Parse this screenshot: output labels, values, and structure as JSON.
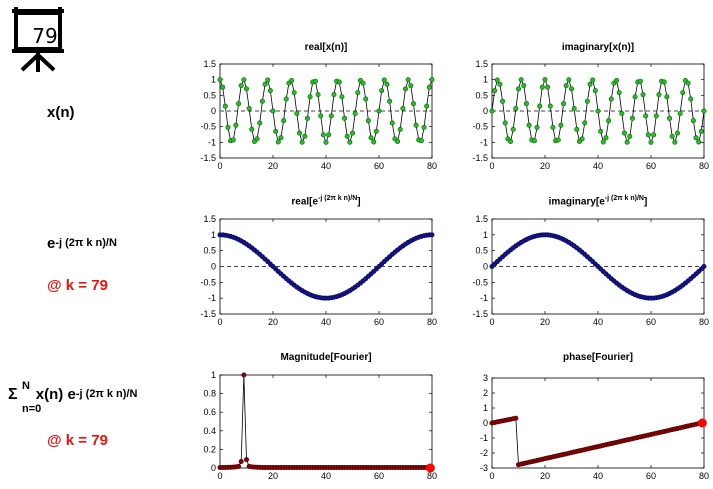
{
  "slide": {
    "number": "79"
  },
  "labels": {
    "row1_signal": "x(n)",
    "row2_base": "e",
    "row2_exp": "-j (2π k n)/N",
    "row2_k": "@ k = 79",
    "row3_sigma": "Σ",
    "row3_sigma_top": "N",
    "row3_sigma_bottom": "n=0",
    "row3_mid": " x(n) e",
    "row3_exp": "-j (2π k n)/N",
    "row3_k": "@ k = 79"
  },
  "titles": {
    "p1": "real[x(n)]",
    "p2": "imaginary[x(n)]",
    "p3_base": "real[e",
    "p3_sup": "-j (2π k n)/N",
    "p3_end": "]",
    "p4_base": "imaginary[e",
    "p4_sup": "-j (2π k n)/N",
    "p4_end": "]",
    "p5": "Magnitude[Fourier]",
    "p6": "phase[Fourier]"
  },
  "colors": {
    "green": "#22c21f",
    "navy": "#14148c",
    "darkred": "#8b0000",
    "red": "#ff0000",
    "highlight": "#e8150f"
  },
  "chart_data": [
    {
      "id": "p1",
      "type": "line",
      "title": "real[x(n)]",
      "x_range": [
        0,
        80
      ],
      "ylim": [
        -1.5,
        1.5
      ],
      "x_ticks": [
        0,
        20,
        40,
        60,
        80
      ],
      "y_ticks": [
        -1.5,
        -1,
        -0.5,
        0,
        0.5,
        1,
        1.5
      ],
      "signal": "cos(2π·9n/80)",
      "n": [
        0,
        80
      ],
      "marker": "green circles",
      "zero_line": "dashed"
    },
    {
      "id": "p2",
      "type": "line",
      "title": "imaginary[x(n)]",
      "x_range": [
        0,
        80
      ],
      "ylim": [
        -1.5,
        1.5
      ],
      "x_ticks": [
        0,
        20,
        40,
        60,
        80
      ],
      "y_ticks": [
        -1.5,
        -1,
        -0.5,
        0,
        0.5,
        1,
        1.5
      ],
      "signal": "sin(2π·9n/80)",
      "n": [
        0,
        80
      ],
      "marker": "green circles",
      "zero_line": "dashed"
    },
    {
      "id": "p3",
      "type": "line",
      "title": "real[e^-j (2π k n)/N]",
      "x_range": [
        0,
        80
      ],
      "ylim": [
        -1.5,
        1.5
      ],
      "x_ticks": [
        0,
        20,
        40,
        60,
        80
      ],
      "y_ticks": [
        -1.5,
        -1,
        -0.5,
        0,
        0.5,
        1,
        1.5
      ],
      "signal": "cos(2π·79n/80)",
      "n": [
        0,
        80
      ],
      "marker": "navy dots",
      "zero_line": "dashed"
    },
    {
      "id": "p4",
      "type": "line",
      "title": "imaginary[e^-j (2π k n)/N]",
      "x_range": [
        0,
        80
      ],
      "ylim": [
        -1.5,
        1.5
      ],
      "x_ticks": [
        0,
        20,
        40,
        60,
        80
      ],
      "y_ticks": [
        -1.5,
        -1,
        -0.5,
        0,
        0.5,
        1,
        1.5
      ],
      "signal": "-sin(2π·79n/80)",
      "n": [
        0,
        80
      ],
      "marker": "navy dots",
      "zero_line": "dashed"
    },
    {
      "id": "p5",
      "type": "line",
      "title": "Magnitude[Fourier]",
      "x_range": [
        0,
        80
      ],
      "ylim": [
        0,
        1
      ],
      "x_ticks": [
        0,
        20,
        40,
        60,
        80
      ],
      "y_ticks": [
        0,
        0.2,
        0.4,
        0.6,
        0.8,
        1
      ],
      "k": [
        0,
        79
      ],
      "peak": {
        "k": 9,
        "value": 1.0
      },
      "near_peak": {
        "k8": 0.07,
        "k10": 0.09
      },
      "floor_value": 0.02,
      "highlight": {
        "k": 79,
        "value": 0.0
      }
    },
    {
      "id": "p6",
      "type": "line",
      "title": "phase[Fourier]",
      "x_range": [
        0,
        80
      ],
      "ylim": [
        -3,
        3
      ],
      "x_ticks": [
        0,
        20,
        40,
        60,
        80
      ],
      "y_ticks": [
        -3,
        -2,
        -1,
        0,
        1,
        2,
        3
      ],
      "k": [
        0,
        79
      ],
      "segments": [
        {
          "k_from": 0,
          "k_to": 9,
          "from": 0.0,
          "to": 0.32
        },
        {
          "k_from": 9,
          "k_to": 10,
          "from": 0.32,
          "to": -2.78
        },
        {
          "k_from": 10,
          "k_to": 79,
          "from": -2.78,
          "to": 0.0
        }
      ],
      "highlight": {
        "k": 79,
        "value": 0.0
      }
    }
  ]
}
